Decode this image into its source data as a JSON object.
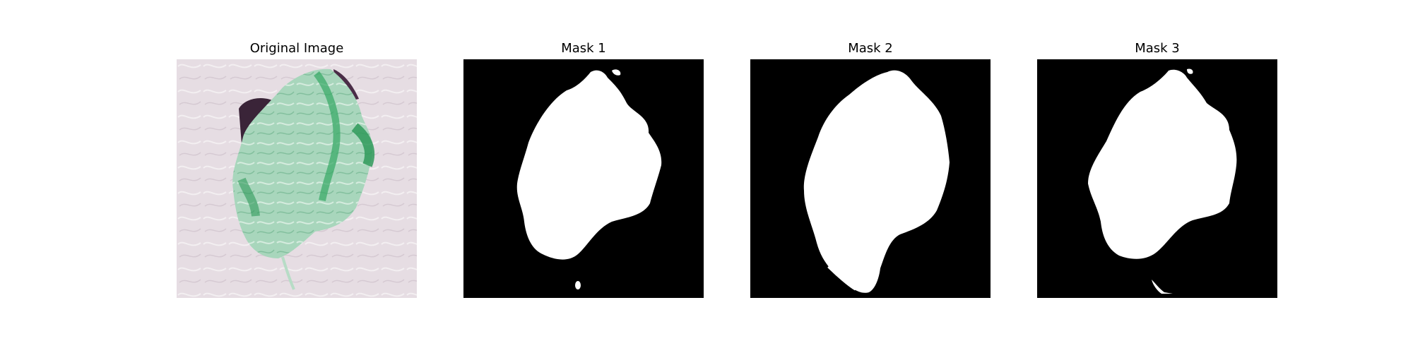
{
  "figure": {
    "panels": [
      {
        "title": "Original Image",
        "kind": "photo",
        "subject": "green leaf on pale patterned background"
      },
      {
        "title": "Mask 1",
        "kind": "mask"
      },
      {
        "title": "Mask 2",
        "kind": "mask"
      },
      {
        "title": "Mask 3",
        "kind": "mask"
      }
    ]
  },
  "colors": {
    "background": "#ffffff",
    "mask_foreground": "#ffffff",
    "mask_background": "#000000",
    "leaf": "#a8d6bc",
    "leaf_dark": "#2f9a5a",
    "shadow": "#3a2438",
    "photo_background": "#e6dde3"
  }
}
